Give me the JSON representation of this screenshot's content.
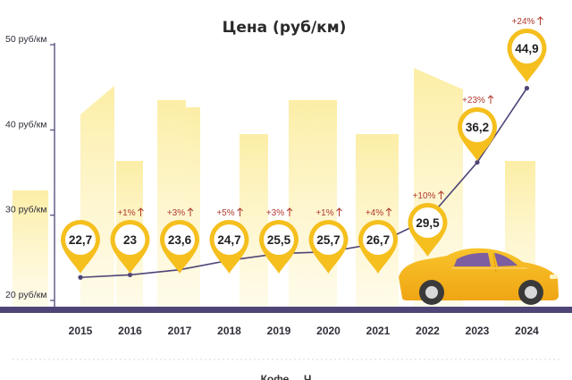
{
  "chart_data": {
    "type": "line",
    "title": "Цена (руб/км)",
    "ylabel": "",
    "xlabel": "",
    "ylim": [
      20,
      50
    ],
    "y_ticks": [
      {
        "value": 20,
        "label": "20 руб/км"
      },
      {
        "value": 30,
        "label": "30 руб/км"
      },
      {
        "value": 40,
        "label": "40 руб/км"
      },
      {
        "value": 50,
        "label": "50 руб/км"
      }
    ],
    "categories": [
      "2015",
      "2016",
      "2017",
      "2018",
      "2019",
      "2020",
      "2021",
      "2022",
      "2023",
      "2024"
    ],
    "values": [
      22.7,
      23,
      23.6,
      24.7,
      25.5,
      25.7,
      26.7,
      29.5,
      36.2,
      44.9
    ],
    "value_labels": [
      "22,7",
      "23",
      "23,6",
      "24,7",
      "25,5",
      "25,7",
      "26,7",
      "29,5",
      "36,2",
      "44,9"
    ],
    "change_labels": [
      "",
      "+1%",
      "+3%",
      "+5%",
      "+3%",
      "+1%",
      "+4%",
      "+10%",
      "+23%",
      "+24%"
    ]
  },
  "footer_text": "Кофе ... Ч",
  "colors": {
    "accent": "#f5bf1e",
    "line": "#4f4577",
    "baseline": "#4f4577",
    "change": "#b03a2e",
    "skyline": "#fbeb9b",
    "car": "#f5b81c"
  }
}
